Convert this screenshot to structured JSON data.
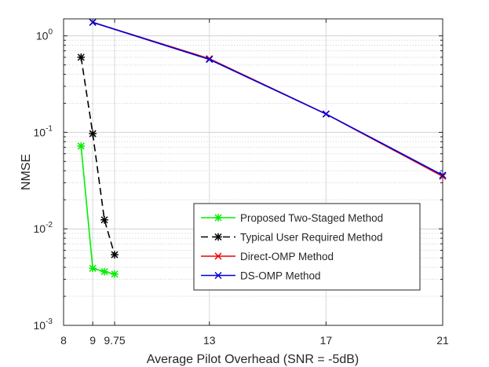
{
  "chart_data": {
    "type": "line",
    "title": "",
    "xlabel": "Average Pilot Overhead (SNR = -5dB)",
    "ylabel": "NMSE",
    "yscale": "log",
    "xlim": [
      8,
      21
    ],
    "ylim": [
      0.001,
      1.5
    ],
    "x_ticks": [
      8,
      9,
      9.75,
      13,
      17,
      21
    ],
    "x_tick_labels": [
      "8",
      "9",
      "9.75",
      "13",
      "17",
      "21"
    ],
    "y_ticks": [
      {
        "value": 1,
        "base": "10",
        "exp": "0"
      },
      {
        "value": 0.1,
        "base": "10",
        "exp": "-1"
      },
      {
        "value": 0.01,
        "base": "10",
        "exp": "-2"
      },
      {
        "value": 0.001,
        "base": "10",
        "exp": "-3"
      }
    ],
    "grid": true,
    "legend_position": "bottom-right",
    "series": [
      {
        "name": "Proposed Two-Staged Method",
        "color": "#00ee00",
        "dash": "solid",
        "marker": "asterisk",
        "x": [
          8.6,
          9,
          9.4,
          9.75
        ],
        "y": [
          0.072,
          0.0039,
          0.0036,
          0.0034
        ]
      },
      {
        "name": "Typical User Required Method",
        "color": "#000000",
        "dash": "dashed",
        "marker": "asterisk",
        "x": [
          8.6,
          9,
          9.4,
          9.75
        ],
        "y": [
          0.6,
          0.097,
          0.0124,
          0.0054
        ]
      },
      {
        "name": "Direct-OMP Method",
        "color": "#ee0000",
        "dash": "solid",
        "marker": "x",
        "x": [
          9,
          13,
          17,
          21
        ],
        "y": [
          1.38,
          0.58,
          0.155,
          0.035
        ]
      },
      {
        "name": "DS-OMP Method",
        "color": "#0000dd",
        "dash": "solid",
        "marker": "x",
        "x": [
          9,
          13,
          17,
          21
        ],
        "y": [
          1.38,
          0.57,
          0.155,
          0.036
        ]
      }
    ]
  }
}
